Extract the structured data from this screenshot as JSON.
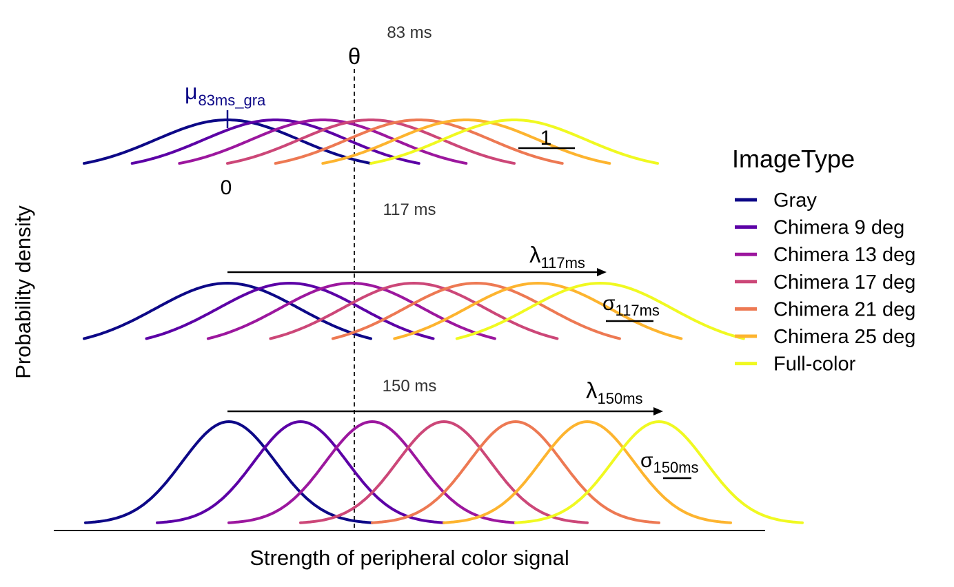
{
  "chart_data": {
    "type": "line",
    "xlabel": "Strength of peripheral color signal",
    "ylabel": "Probability density",
    "threshold_label": "θ",
    "legend": {
      "title": "ImageType",
      "position": "right"
    },
    "series": [
      {
        "name": "Gray",
        "color": "#0d0887"
      },
      {
        "name": "Chimera 9 deg",
        "color": "#5c01a6"
      },
      {
        "name": "Chimera 13 deg",
        "color": "#9c179e"
      },
      {
        "name": "Chimera 17 deg",
        "color": "#cc4778"
      },
      {
        "name": "Chimera 21 deg",
        "color": "#ed7953"
      },
      {
        "name": "Chimera 25 deg",
        "color": "#fdb42f"
      },
      {
        "name": "Full-color",
        "color": "#f0f921"
      }
    ],
    "panels": [
      {
        "title": "83 ms",
        "means": [
          0,
          0.67,
          1.33,
          2.0,
          2.67,
          3.33,
          4.0
        ],
        "sigma": 1.0,
        "annotations": {
          "mu": "μ",
          "mu_sub": "83ms_gra",
          "zero": "0",
          "unit": "1"
        }
      },
      {
        "title": "117 ms",
        "means": [
          0,
          0.87,
          1.73,
          2.6,
          3.47,
          4.33,
          5.2
        ],
        "sigma": 1.0,
        "annotations": {
          "lambda": "λ",
          "lambda_sub": "117ms",
          "sigma": "σ",
          "sigma_sub": "117ms"
        }
      },
      {
        "title": "150 ms",
        "means": [
          0,
          1.0,
          2.0,
          3.0,
          4.0,
          5.0,
          6.0
        ],
        "sigma": 0.65,
        "annotations": {
          "lambda": "λ",
          "lambda_sub": "150ms",
          "sigma": "σ",
          "sigma_sub": "150ms"
        }
      }
    ],
    "threshold_x": 1.75
  }
}
